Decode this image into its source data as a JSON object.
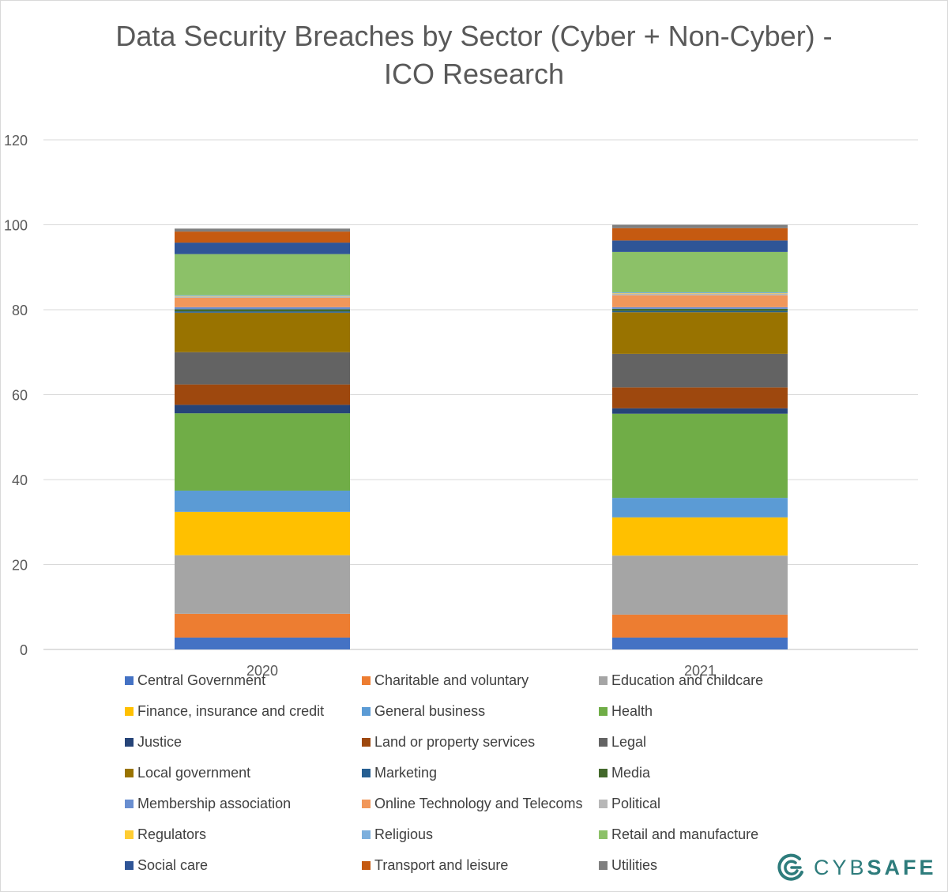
{
  "page": {
    "title_line1": "Data Security Breaches by Sector (Cyber + Non-Cyber) -",
    "title_line2": "ICO Research"
  },
  "logo": {
    "text_part1": "CYB",
    "text_part2": "SAFE",
    "color": "#2e7c7c"
  },
  "chart_data": {
    "type": "bar",
    "stacked": true,
    "title": "Data Security Breaches by Sector (Cyber + Non-Cyber) - ICO Research",
    "categories": [
      "2020",
      "2021"
    ],
    "ylim": [
      0,
      120
    ],
    "yticks": [
      0,
      20,
      40,
      60,
      80,
      100,
      120
    ],
    "grid": true,
    "legend_position": "bottom",
    "series": [
      {
        "name": "Central Government",
        "color": "#4472c4",
        "values": [
          2.8,
          2.8
        ]
      },
      {
        "name": "Charitable and voluntary",
        "color": "#ed7d31",
        "values": [
          5.6,
          5.4
        ]
      },
      {
        "name": "Education and childcare",
        "color": "#a5a5a5",
        "values": [
          13.8,
          13.9
        ]
      },
      {
        "name": "Finance, insurance and credit",
        "color": "#ffc000",
        "values": [
          10.2,
          9.0
        ]
      },
      {
        "name": "General business",
        "color": "#5b9bd5",
        "values": [
          5.0,
          4.6
        ]
      },
      {
        "name": "Health",
        "color": "#70ad47",
        "values": [
          18.2,
          19.8
        ]
      },
      {
        "name": "Justice",
        "color": "#264478",
        "values": [
          2.0,
          1.3
        ]
      },
      {
        "name": "Land or property services",
        "color": "#9e480e",
        "values": [
          4.8,
          4.9
        ]
      },
      {
        "name": "Legal",
        "color": "#636363",
        "values": [
          7.6,
          7.9
        ]
      },
      {
        "name": "Local government",
        "color": "#997300",
        "values": [
          9.3,
          9.8
        ]
      },
      {
        "name": "Marketing",
        "color": "#255e91",
        "values": [
          0.3,
          0.3
        ]
      },
      {
        "name": "Media",
        "color": "#43682b",
        "values": [
          0.5,
          0.5
        ]
      },
      {
        "name": "Membership association",
        "color": "#698ed0",
        "values": [
          0.5,
          0.4
        ]
      },
      {
        "name": "Online Technology and Telecoms",
        "color": "#f1975a",
        "values": [
          2.2,
          2.8
        ]
      },
      {
        "name": "Political",
        "color": "#b7b7b7",
        "values": [
          0.3,
          0.4
        ]
      },
      {
        "name": "Regulators",
        "color": "#ffcd33",
        "values": [
          0.1,
          0.1
        ]
      },
      {
        "name": "Religious",
        "color": "#7cafdd",
        "values": [
          0.2,
          0.2
        ]
      },
      {
        "name": "Retail and manufacture",
        "color": "#8cc168",
        "values": [
          9.7,
          9.5
        ]
      },
      {
        "name": "Social care",
        "color": "#2f5597",
        "values": [
          2.7,
          2.7
        ]
      },
      {
        "name": "Transport and leisure",
        "color": "#c55a11",
        "values": [
          2.6,
          2.9
        ]
      },
      {
        "name": "Utilities",
        "color": "#7f7f7f",
        "values": [
          0.7,
          0.8
        ]
      }
    ]
  }
}
